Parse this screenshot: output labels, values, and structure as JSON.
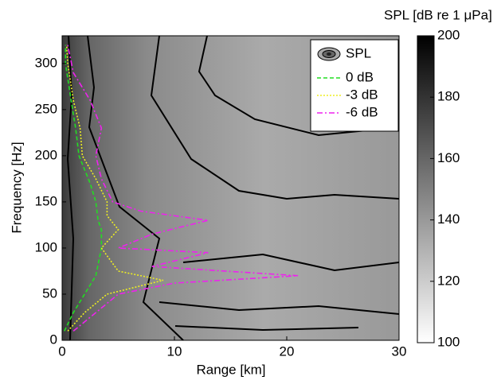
{
  "chart_data": {
    "type": "line",
    "x_label": "Range [km]",
    "y_label": "Frequency [Hz]",
    "xlim": [
      0,
      30
    ],
    "xticks": [
      0,
      10,
      20,
      30
    ],
    "ylim": [
      0,
      330
    ],
    "yticks": [
      0,
      50,
      100,
      150,
      200,
      250,
      300
    ],
    "legend_position": "upper right",
    "contour_label": "SPL",
    "colorbar": {
      "label": "SPL [dB re 1 μPa]",
      "lim": [
        100,
        200
      ],
      "ticks": [
        100,
        120,
        140,
        160,
        180,
        200
      ],
      "colormap": [
        "#ffffff",
        "#000000"
      ]
    },
    "series": [
      {
        "name": "0 dB",
        "color": "#22dd22",
        "dash": "5,3",
        "x": [
          0.2,
          1,
          2,
          3,
          3.5,
          3.5,
          3.2,
          3,
          2.5,
          1.5,
          1.2,
          0.8,
          0.3,
          0.3
        ],
        "y": [
          10,
          30,
          50,
          70,
          100,
          120,
          130,
          150,
          170,
          200,
          230,
          260,
          300,
          320
        ]
      },
      {
        "name": "-3 dB",
        "color": "#eeee22",
        "dash": "2,2",
        "x": [
          0.5,
          2,
          4,
          9,
          5,
          3.5,
          5,
          4,
          4,
          3,
          1.8,
          1.6,
          1,
          0.5,
          0.4
        ],
        "y": [
          10,
          30,
          50,
          65,
          75,
          100,
          120,
          135,
          150,
          175,
          200,
          230,
          260,
          300,
          320
        ]
      },
      {
        "name": "-6 dB",
        "color": "#ee22ee",
        "dash": "7,3,2,3",
        "x": [
          1,
          3,
          5,
          10,
          21,
          8,
          13,
          5,
          8,
          13,
          7,
          4.5,
          3.5,
          3,
          3.5,
          2.5,
          1,
          0.5
        ],
        "y": [
          10,
          30,
          50,
          62,
          70,
          80,
          95,
          100,
          115,
          130,
          140,
          150,
          175,
          200,
          230,
          260,
          290,
          320
        ]
      }
    ]
  }
}
